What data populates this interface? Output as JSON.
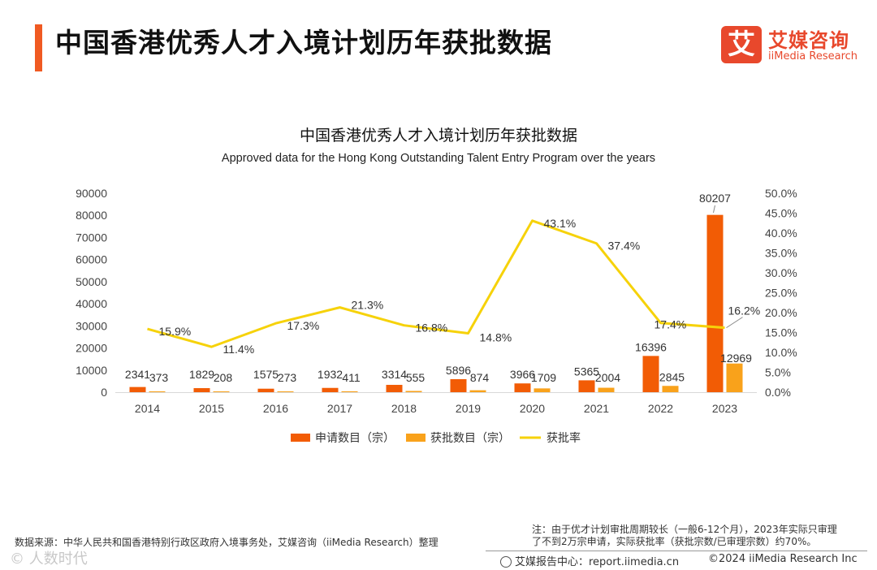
{
  "header": {
    "title": "中国香港优秀人才入境计划历年获批数据",
    "logo_mark": "艾",
    "logo_cn": "艾媒咨询",
    "logo_en": "iiMedia Research"
  },
  "chart_data": {
    "type": "bar",
    "title": "中国香港优秀人才入境计划历年获批数据",
    "subtitle": "Approved data for the Hong Kong Outstanding Talent Entry Program over the years",
    "categories": [
      "2014",
      "2015",
      "2016",
      "2017",
      "2018",
      "2019",
      "2020",
      "2021",
      "2022",
      "2023"
    ],
    "series": [
      {
        "name": "申请数目（宗）",
        "type": "bar",
        "axis": "left",
        "color": "#f25c05",
        "values": [
          2341,
          1829,
          1575,
          1932,
          3314,
          5896,
          3966,
          5365,
          16396,
          80207
        ]
      },
      {
        "name": "获批数目（宗）",
        "type": "bar",
        "axis": "left",
        "color": "#f9a21b",
        "values": [
          373,
          208,
          273,
          411,
          555,
          874,
          1709,
          2004,
          2845,
          12969
        ]
      },
      {
        "name": "获批率",
        "type": "line",
        "axis": "right",
        "color": "#f6d20a",
        "values": [
          15.9,
          11.4,
          17.3,
          21.3,
          16.8,
          14.8,
          43.1,
          37.4,
          17.4,
          16.2
        ]
      }
    ],
    "y_left": {
      "min": 0,
      "max": 90000,
      "step": 10000,
      "ticks": [
        "0",
        "10000",
        "20000",
        "30000",
        "40000",
        "50000",
        "60000",
        "70000",
        "80000",
        "90000"
      ]
    },
    "y_right": {
      "min": 0,
      "max": 50,
      "step": 5,
      "ticks": [
        "0.0%",
        "5.0%",
        "10.0%",
        "15.0%",
        "20.0%",
        "25.0%",
        "30.0%",
        "35.0%",
        "40.0%",
        "45.0%",
        "50.0%"
      ]
    },
    "rate_labels": [
      "15.9%",
      "11.4%",
      "17.3%",
      "21.3%",
      "16.8%",
      "14.8%",
      "43.1%",
      "37.4%",
      "17.4%",
      "16.2%"
    ],
    "legend": "bottom-center"
  },
  "footer": {
    "source": "数据来源：中华人民共和国香港特别行政区政府入境事务处，艾媒咨询（iiMedia Research）整理",
    "note_line1": "注：由于优才计划审批周期较长（一般6-12个月），2023年实际只审理",
    "note_line2": "了不到2万宗申请，实际获批率（获批宗数/已审理宗数）约70%。",
    "report": "艾媒报告中心：report.iimedia.cn",
    "copyright": "©2024  iiMedia Research  Inc",
    "watermark": "© 人数时代"
  }
}
